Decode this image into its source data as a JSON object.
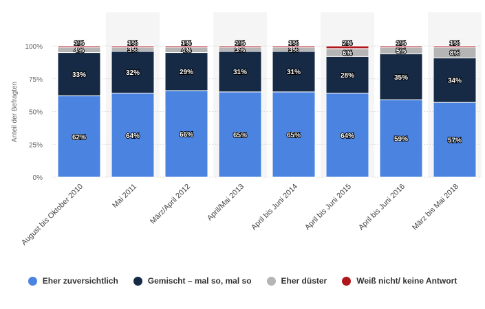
{
  "chart_data": {
    "type": "bar",
    "stacked": true,
    "ylabel": "Anteil der Befragten",
    "ylim": [
      0,
      100
    ],
    "yticks": [
      "0%",
      "25%",
      "50%",
      "75%",
      "100%"
    ],
    "grid": true,
    "legend_position": "bottom",
    "categories": [
      "August bis Oktober 2010",
      "Mai 2011",
      "März/April 2012",
      "April/Mai 2013",
      "April bis Juni 2014",
      "April bis Juni 2015",
      "April bis Juni 2016",
      "März bis Mai 2018"
    ],
    "series": [
      {
        "name": "Eher zuversichtlich",
        "color": "#4a83e0",
        "values": [
          62,
          64,
          66,
          65,
          65,
          64,
          59,
          57
        ],
        "labels": [
          "62%",
          "64%",
          "66%",
          "65%",
          "65%",
          "64%",
          "59%",
          "57%"
        ]
      },
      {
        "name": "Gemischt - mal so, mal so",
        "color": "#162a45",
        "values": [
          33,
          32,
          29,
          31,
          31,
          28,
          35,
          34
        ],
        "labels": [
          "33%",
          "32%",
          "29%",
          "31%",
          "31%",
          "28%",
          "35%",
          "34%"
        ]
      },
      {
        "name": "Eher düster",
        "color": "#b5b5b5",
        "values": [
          4,
          3,
          4,
          3,
          3,
          6,
          5,
          8
        ],
        "labels": [
          "4%",
          "3%",
          "4%",
          "3%",
          "3%",
          "6%",
          "5%",
          "8%"
        ]
      },
      {
        "name": "Weiß nicht/ keine Antwort",
        "color": "#b0161c",
        "values": [
          1,
          1,
          1,
          1,
          1,
          2,
          1,
          1
        ],
        "labels": [
          "1%",
          "1%",
          "1%",
          "1%",
          "1%",
          "2%",
          "1%",
          "1%"
        ]
      }
    ]
  },
  "legend": {
    "items": [
      {
        "label": "Eher zuversichtlich",
        "color": "#4a83e0"
      },
      {
        "label": "Gemischt – mal so, mal so",
        "color": "#162a45"
      },
      {
        "label": "Eher düster",
        "color": "#b5b5b5"
      },
      {
        "label": "Weiß nicht/ keine Antwort",
        "color": "#b0161c"
      }
    ]
  }
}
